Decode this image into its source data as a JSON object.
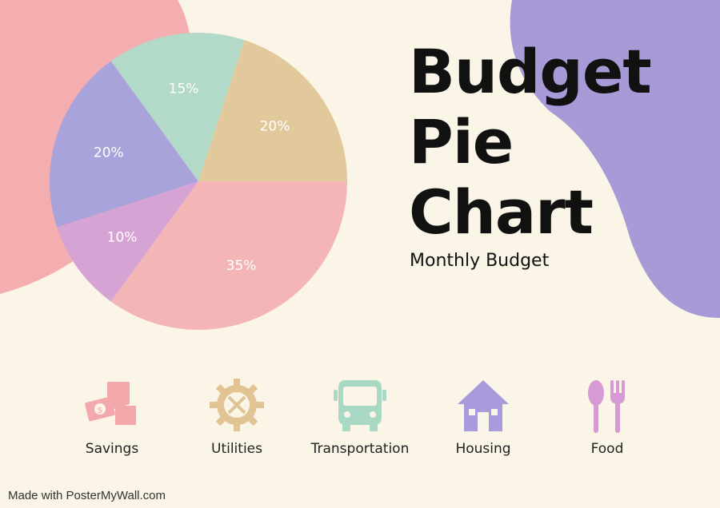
{
  "title_lines": [
    "Budget",
    "Pie",
    "Chart"
  ],
  "subtitle": "Monthly Budget",
  "chart_data": {
    "type": "pie",
    "slices": [
      {
        "name": "Food",
        "value": 35,
        "label": "35%",
        "color": "#f4b5b6"
      },
      {
        "name": "Savings",
        "value": 10,
        "label": "10%",
        "color": "#d6a4d4"
      },
      {
        "name": "Housing",
        "value": 20,
        "label": "20%",
        "color": "#a9a3dc"
      },
      {
        "name": "Transportation",
        "value": 15,
        "label": "15%",
        "color": "#b3d9c8"
      },
      {
        "name": "Utilities",
        "value": 20,
        "label": "20%",
        "color": "#e2c99c"
      }
    ]
  },
  "legend": [
    {
      "label": "Savings",
      "icon": "money-hand-icon",
      "color": "#f3a8ab"
    },
    {
      "label": "Utilities",
      "icon": "gear-tools-icon",
      "color": "#e1c394"
    },
    {
      "label": "Transportation",
      "icon": "bus-icon",
      "color": "#a9d8c4"
    },
    {
      "label": "Housing",
      "icon": "house-icon",
      "color": "#a99bdb"
    },
    {
      "label": "Food",
      "icon": "fork-spoon-icon",
      "color": "#d79ad4"
    }
  ],
  "footer": "Made with PosterMyWall.com",
  "colors": {
    "background": "#faf5e6",
    "blob_pink": "#f4aeb0",
    "blob_purple": "#a79ad7"
  }
}
